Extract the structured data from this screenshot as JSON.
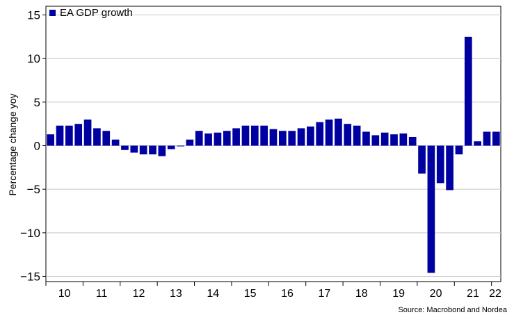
{
  "chart_data": {
    "type": "bar",
    "legend": "EA GDP growth",
    "ylabel": "Percentage change yoy",
    "source": "Source: Macrobond and Nordea",
    "ylim": [
      -15.6,
      16
    ],
    "yticks": [
      15,
      10,
      5,
      0,
      -5,
      -10,
      -15
    ],
    "color": "#0000a0",
    "year_labels": [
      "10",
      "11",
      "12",
      "13",
      "14",
      "15",
      "16",
      "17",
      "18",
      "19",
      "20",
      "21",
      "22"
    ],
    "series": [
      {
        "name": "EA GDP growth",
        "values": [
          1.3,
          2.3,
          2.3,
          2.5,
          3.0,
          2.0,
          1.7,
          0.7,
          -0.5,
          -0.8,
          -1.0,
          -1.0,
          -1.2,
          -0.4,
          0.0,
          0.7,
          1.7,
          1.4,
          1.5,
          1.7,
          2.0,
          2.3,
          2.3,
          2.3,
          1.9,
          1.7,
          1.7,
          2.0,
          2.2,
          2.7,
          3.0,
          3.1,
          2.5,
          2.3,
          1.6,
          1.2,
          1.5,
          1.3,
          1.4,
          1.0,
          -3.2,
          -14.6,
          -4.3,
          -5.1,
          -1.0,
          12.5,
          0.5,
          1.6,
          1.6
        ]
      }
    ]
  }
}
